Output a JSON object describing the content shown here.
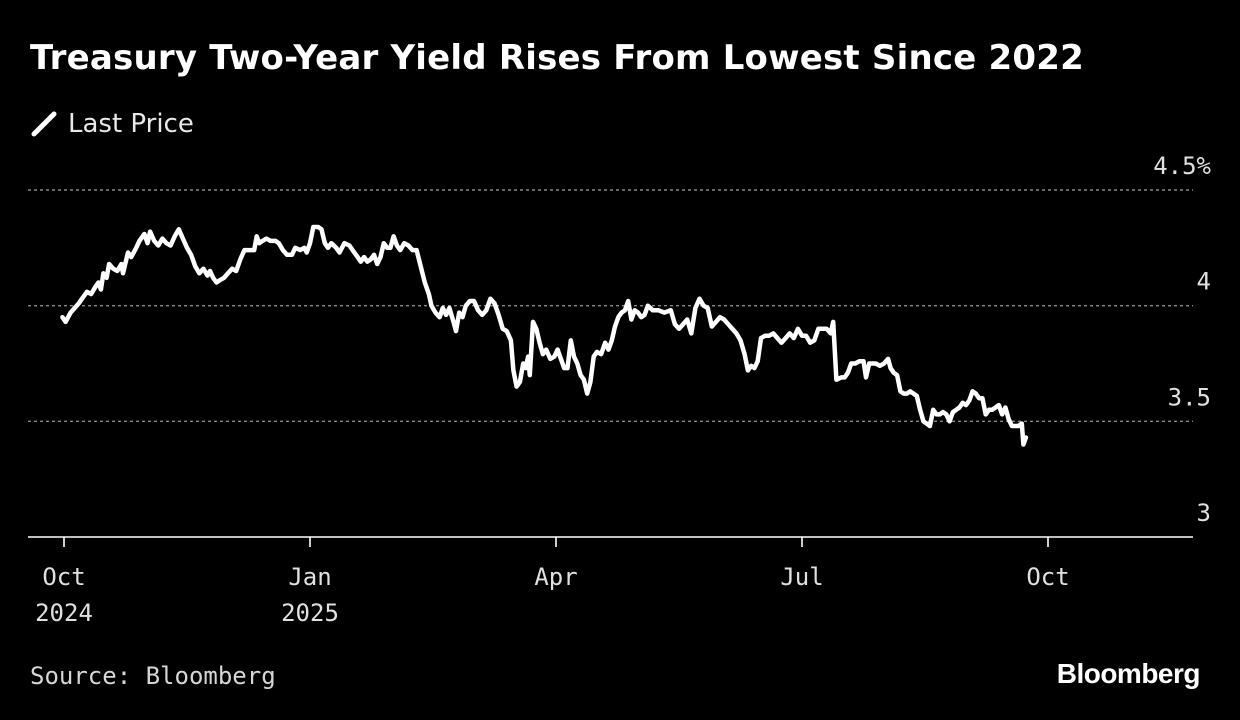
{
  "title": "Treasury Two-Year Yield Rises From Lowest Since 2022",
  "legend": {
    "label": "Last Price",
    "icon": "line-swatch-icon"
  },
  "footer": {
    "source": "Source: Bloomberg",
    "brand": "Bloomberg"
  },
  "colors": {
    "background": "#000000",
    "line": "#ffffff",
    "grid": "#888888",
    "text": "#e0e0e0"
  },
  "chart_data": {
    "type": "line",
    "title": "Treasury Two-Year Yield Rises From Lowest Since 2022",
    "xlabel": "",
    "ylabel": "",
    "ylim": [
      3.0,
      4.6
    ],
    "y_ticks": [
      {
        "value": 3.0,
        "label": "3"
      },
      {
        "value": 3.5,
        "label": "3.5"
      },
      {
        "value": 4.0,
        "label": "4"
      },
      {
        "value": 4.5,
        "label": "4.5%"
      }
    ],
    "grid": true,
    "x_ticks": [
      {
        "x": 0.0,
        "line1": "Oct",
        "line2": "2024"
      },
      {
        "x": 3.0,
        "line1": "Jan",
        "line2": "2025"
      },
      {
        "x": 6.0,
        "line1": "Apr",
        "line2": ""
      },
      {
        "x": 9.0,
        "line1": "Jul",
        "line2": ""
      },
      {
        "x": 12.0,
        "line1": "Oct",
        "line2": ""
      }
    ],
    "x_unit": "months since Oct 1, 2024",
    "xlim": [
      -0.45,
      13.6
    ],
    "series": [
      {
        "name": "Last Price",
        "points": [
          [
            -0.02,
            3.95
          ],
          [
            0.02,
            3.93
          ],
          [
            0.08,
            3.97
          ],
          [
            0.13,
            3.99
          ],
          [
            0.18,
            4.01
          ],
          [
            0.22,
            4.03
          ],
          [
            0.28,
            4.06
          ],
          [
            0.33,
            4.05
          ],
          [
            0.38,
            4.08
          ],
          [
            0.42,
            4.1
          ],
          [
            0.45,
            4.07
          ],
          [
            0.48,
            4.14
          ],
          [
            0.52,
            4.12
          ],
          [
            0.55,
            4.18
          ],
          [
            0.6,
            4.16
          ],
          [
            0.65,
            4.15
          ],
          [
            0.7,
            4.18
          ],
          [
            0.72,
            4.14
          ],
          [
            0.78,
            4.23
          ],
          [
            0.82,
            4.21
          ],
          [
            0.88,
            4.25
          ],
          [
            0.92,
            4.28
          ],
          [
            0.98,
            4.31
          ],
          [
            1.02,
            4.27
          ],
          [
            1.05,
            4.32
          ],
          [
            1.1,
            4.28
          ],
          [
            1.15,
            4.26
          ],
          [
            1.2,
            4.29
          ],
          [
            1.25,
            4.27
          ],
          [
            1.3,
            4.26
          ],
          [
            1.35,
            4.3
          ],
          [
            1.4,
            4.33
          ],
          [
            1.45,
            4.29
          ],
          [
            1.5,
            4.25
          ],
          [
            1.55,
            4.22
          ],
          [
            1.6,
            4.17
          ],
          [
            1.65,
            4.14
          ],
          [
            1.7,
            4.16
          ],
          [
            1.75,
            4.13
          ],
          [
            1.78,
            4.15
          ],
          [
            1.82,
            4.12
          ],
          [
            1.86,
            4.1
          ],
          [
            1.9,
            4.11
          ],
          [
            1.95,
            4.12
          ],
          [
            2.0,
            4.14
          ],
          [
            2.05,
            4.16
          ],
          [
            2.1,
            4.15
          ],
          [
            2.15,
            4.2
          ],
          [
            2.2,
            4.24
          ],
          [
            2.25,
            4.24
          ],
          [
            2.32,
            4.24
          ],
          [
            2.35,
            4.3
          ],
          [
            2.38,
            4.27
          ],
          [
            2.42,
            4.28
          ],
          [
            2.47,
            4.29
          ],
          [
            2.52,
            4.28
          ],
          [
            2.58,
            4.28
          ],
          [
            2.62,
            4.27
          ],
          [
            2.67,
            4.24
          ],
          [
            2.72,
            4.22
          ],
          [
            2.78,
            4.22
          ],
          [
            2.82,
            4.25
          ],
          [
            2.88,
            4.24
          ],
          [
            2.93,
            4.25
          ],
          [
            2.96,
            4.23
          ],
          [
            3.0,
            4.27
          ],
          [
            3.04,
            4.34
          ],
          [
            3.1,
            4.34
          ],
          [
            3.14,
            4.33
          ],
          [
            3.18,
            4.27
          ],
          [
            3.22,
            4.25
          ],
          [
            3.26,
            4.27
          ],
          [
            3.32,
            4.25
          ],
          [
            3.36,
            4.23
          ],
          [
            3.42,
            4.27
          ],
          [
            3.48,
            4.26
          ],
          [
            3.52,
            4.24
          ],
          [
            3.58,
            4.21
          ],
          [
            3.62,
            4.19
          ],
          [
            3.66,
            4.21
          ],
          [
            3.7,
            4.19
          ],
          [
            3.74,
            4.2
          ],
          [
            3.78,
            4.22
          ],
          [
            3.82,
            4.18
          ],
          [
            3.86,
            4.21
          ],
          [
            3.9,
            4.27
          ],
          [
            3.94,
            4.25
          ],
          [
            3.98,
            4.25
          ],
          [
            4.02,
            4.3
          ],
          [
            4.06,
            4.26
          ],
          [
            4.1,
            4.24
          ],
          [
            4.15,
            4.27
          ],
          [
            4.2,
            4.26
          ],
          [
            4.25,
            4.24
          ],
          [
            4.3,
            4.24
          ],
          [
            4.35,
            4.17
          ],
          [
            4.4,
            4.1
          ],
          [
            4.45,
            4.05
          ],
          [
            4.48,
            4.0
          ],
          [
            4.53,
            3.97
          ],
          [
            4.58,
            3.95
          ],
          [
            4.62,
            3.99
          ],
          [
            4.66,
            3.96
          ],
          [
            4.7,
            3.99
          ],
          [
            4.75,
            3.93
          ],
          [
            4.78,
            3.89
          ],
          [
            4.82,
            3.97
          ],
          [
            4.86,
            3.95
          ],
          [
            4.9,
            4.0
          ],
          [
            4.95,
            4.02
          ],
          [
            5.0,
            4.02
          ],
          [
            5.05,
            3.98
          ],
          [
            5.1,
            3.96
          ],
          [
            5.15,
            3.98
          ],
          [
            5.2,
            4.03
          ],
          [
            5.25,
            4.01
          ],
          [
            5.3,
            3.96
          ],
          [
            5.35,
            3.9
          ],
          [
            5.4,
            3.89
          ],
          [
            5.45,
            3.85
          ],
          [
            5.48,
            3.72
          ],
          [
            5.52,
            3.65
          ],
          [
            5.56,
            3.67
          ],
          [
            5.6,
            3.75
          ],
          [
            5.63,
            3.73
          ],
          [
            5.66,
            3.78
          ],
          [
            5.68,
            3.7
          ],
          [
            5.72,
            3.93
          ],
          [
            5.76,
            3.9
          ],
          [
            5.8,
            3.84
          ],
          [
            5.84,
            3.79
          ],
          [
            5.88,
            3.81
          ],
          [
            5.93,
            3.77
          ],
          [
            5.98,
            3.78
          ],
          [
            6.02,
            3.81
          ],
          [
            6.06,
            3.77
          ],
          [
            6.1,
            3.73
          ],
          [
            6.14,
            3.73
          ],
          [
            6.18,
            3.85
          ],
          [
            6.22,
            3.78
          ],
          [
            6.26,
            3.75
          ],
          [
            6.3,
            3.7
          ],
          [
            6.34,
            3.68
          ],
          [
            6.38,
            3.62
          ],
          [
            6.42,
            3.67
          ],
          [
            6.46,
            3.78
          ],
          [
            6.5,
            3.8
          ],
          [
            6.55,
            3.79
          ],
          [
            6.6,
            3.84
          ],
          [
            6.64,
            3.81
          ],
          [
            6.68,
            3.85
          ],
          [
            6.72,
            3.91
          ],
          [
            6.76,
            3.95
          ],
          [
            6.8,
            3.97
          ],
          [
            6.84,
            3.98
          ],
          [
            6.88,
            4.02
          ],
          [
            6.92,
            3.94
          ],
          [
            6.96,
            3.98
          ],
          [
            7.0,
            3.97
          ],
          [
            7.04,
            3.95
          ],
          [
            7.08,
            3.96
          ],
          [
            7.12,
            4.0
          ],
          [
            7.18,
            3.98
          ],
          [
            7.25,
            3.98
          ],
          [
            7.32,
            3.97
          ],
          [
            7.4,
            3.98
          ],
          [
            7.45,
            3.92
          ],
          [
            7.5,
            3.9
          ],
          [
            7.55,
            3.92
          ],
          [
            7.6,
            3.94
          ],
          [
            7.65,
            3.88
          ],
          [
            7.7,
            3.99
          ],
          [
            7.75,
            4.03
          ],
          [
            7.8,
            4.0
          ],
          [
            7.85,
            3.99
          ],
          [
            7.9,
            3.91
          ],
          [
            7.95,
            3.93
          ],
          [
            8.0,
            3.95
          ],
          [
            8.05,
            3.94
          ],
          [
            8.1,
            3.92
          ],
          [
            8.15,
            3.9
          ],
          [
            8.2,
            3.88
          ],
          [
            8.25,
            3.85
          ],
          [
            8.3,
            3.79
          ],
          [
            8.34,
            3.72
          ],
          [
            8.38,
            3.74
          ],
          [
            8.42,
            3.73
          ],
          [
            8.46,
            3.76
          ],
          [
            8.5,
            3.86
          ],
          [
            8.55,
            3.87
          ],
          [
            8.6,
            3.87
          ],
          [
            8.65,
            3.88
          ],
          [
            8.7,
            3.86
          ],
          [
            8.75,
            3.84
          ],
          [
            8.8,
            3.86
          ],
          [
            8.85,
            3.88
          ],
          [
            8.9,
            3.86
          ],
          [
            8.95,
            3.9
          ],
          [
            9.0,
            3.87
          ],
          [
            9.05,
            3.87
          ],
          [
            9.1,
            3.84
          ],
          [
            9.15,
            3.85
          ],
          [
            9.2,
            3.9
          ],
          [
            9.25,
            3.9
          ],
          [
            9.3,
            3.9
          ],
          [
            9.35,
            3.88
          ],
          [
            9.38,
            3.93
          ],
          [
            9.42,
            3.68
          ],
          [
            9.48,
            3.69
          ],
          [
            9.52,
            3.69
          ],
          [
            9.56,
            3.71
          ],
          [
            9.6,
            3.75
          ],
          [
            9.65,
            3.75
          ],
          [
            9.7,
            3.76
          ],
          [
            9.75,
            3.76
          ],
          [
            9.78,
            3.69
          ],
          [
            9.82,
            3.75
          ],
          [
            9.86,
            3.75
          ],
          [
            9.9,
            3.75
          ],
          [
            9.95,
            3.74
          ],
          [
            10.0,
            3.75
          ],
          [
            10.05,
            3.77
          ],
          [
            10.08,
            3.73
          ],
          [
            10.12,
            3.71
          ],
          [
            10.16,
            3.7
          ],
          [
            10.2,
            3.63
          ],
          [
            10.24,
            3.62
          ],
          [
            10.28,
            3.62
          ],
          [
            10.32,
            3.63
          ],
          [
            10.36,
            3.62
          ],
          [
            10.4,
            3.61
          ],
          [
            10.44,
            3.55
          ],
          [
            10.48,
            3.5
          ],
          [
            10.52,
            3.49
          ],
          [
            10.56,
            3.48
          ],
          [
            10.6,
            3.55
          ],
          [
            10.64,
            3.53
          ],
          [
            10.68,
            3.53
          ],
          [
            10.72,
            3.54
          ],
          [
            10.76,
            3.53
          ],
          [
            10.8,
            3.5
          ],
          [
            10.84,
            3.54
          ],
          [
            10.88,
            3.55
          ],
          [
            10.92,
            3.56
          ],
          [
            10.96,
            3.58
          ],
          [
            11.0,
            3.57
          ],
          [
            11.04,
            3.59
          ],
          [
            11.08,
            3.63
          ],
          [
            11.12,
            3.62
          ],
          [
            11.16,
            3.6
          ],
          [
            11.2,
            3.6
          ],
          [
            11.24,
            3.53
          ],
          [
            11.28,
            3.55
          ],
          [
            11.32,
            3.55
          ],
          [
            11.36,
            3.56
          ],
          [
            11.4,
            3.57
          ],
          [
            11.44,
            3.53
          ],
          [
            11.48,
            3.56
          ],
          [
            11.52,
            3.51
          ],
          [
            11.56,
            3.48
          ],
          [
            11.6,
            3.48
          ],
          [
            11.64,
            3.48
          ],
          [
            11.68,
            3.49
          ],
          [
            11.7,
            3.4
          ],
          [
            11.73,
            3.43
          ]
        ]
      }
    ]
  }
}
